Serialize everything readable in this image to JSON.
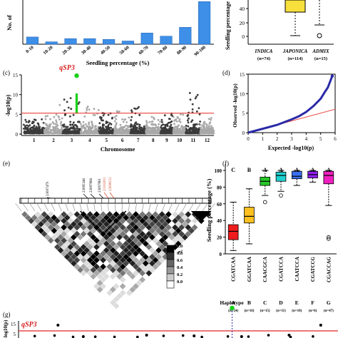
{
  "panels": {
    "a": {
      "label": "",
      "ylabel": "No. of",
      "xlabel": "Seedling percentage (%)"
    },
    "b": {
      "label": "",
      "ylabel": "Seedling percentage",
      "y_tick": "40",
      "y_tick_low": "20",
      "y_tick_zero": "0",
      "groups": [
        "INDICA",
        "JAPONICA",
        "ADMIX"
      ],
      "group_n": [
        "(n=74)",
        "(n=114)",
        "(n=15)"
      ]
    },
    "c": {
      "label": "(c)",
      "peak_label": "qSP3",
      "ylabel": "-log10(p)",
      "xlabel": "Chromosome"
    },
    "d": {
      "label": "(d)",
      "ylabel": "Observed -log10(p)",
      "xlabel": "Expected -log10(p)"
    },
    "e": {
      "label": "(e)",
      "snps": [
        "23097479",
        "23085346",
        "23087866",
        "23097861",
        "23102811",
        "23098151"
      ],
      "legend_title": "r²",
      "legend_ticks": [
        "1.0",
        "0.8",
        "0.6",
        "0.4",
        "0.2",
        "0.0"
      ]
    },
    "f": {
      "label": "(f)",
      "ylabel": "Seedling percentage (%)",
      "haplotype_title": "Haplotype"
    },
    "g": {
      "label": "(g)",
      "peak_label": "qSP3",
      "ylabel": "-log10(p)",
      "y_ticks": [
        "15",
        "5"
      ]
    }
  },
  "chart_data": [
    {
      "panel": "a",
      "type": "bar",
      "categories": [
        "0-10",
        "10-20",
        "20-30",
        "30-40",
        "40-50",
        "50-60",
        "60-70",
        "70-80",
        "80-90",
        "90-100"
      ],
      "values": [
        9,
        3,
        7,
        7,
        6,
        4,
        14,
        10,
        21,
        53
      ],
      "xlabel": "Seedling percentage (%)",
      "ylim": [
        0,
        55
      ]
    },
    {
      "panel": "b",
      "type": "box",
      "categories": [
        "INDICA",
        "JAPONICA",
        "ADMIX"
      ],
      "counts": [
        "n=74",
        "n=114",
        "n=15"
      ],
      "boxes": [
        {
          "category": "JAPONICA",
          "min": 1,
          "q1": 32,
          "q3": 50,
          "max": 50
        },
        {
          "category": "ADMIX",
          "min": 8,
          "q1": 28,
          "q3": 50,
          "max": 50,
          "outliers": [
            1
          ]
        }
      ],
      "colors": {
        "JAPONICA": "#f7e03c",
        "ADMIX": "#ffffff"
      },
      "ylim": [
        0,
        50
      ]
    },
    {
      "panel": "c",
      "type": "scatter",
      "xlabel": "Chromosome",
      "categories": [
        "1",
        "2",
        "3",
        "4",
        "5",
        "6",
        "7",
        "8",
        "9",
        "10",
        "11",
        "12"
      ],
      "y_ticks": [
        0,
        5,
        10,
        15
      ],
      "threshold": 5.3,
      "ylim": [
        0,
        15
      ],
      "peaks": [
        5,
        7.5,
        10.5,
        8,
        7,
        6.5,
        7.5,
        6,
        6.5,
        6,
        11,
        5
      ],
      "highlight": {
        "chromosome": 3,
        "label": "qSP3",
        "y": 14.8
      },
      "colors": {
        "odd": "#3a3a3a",
        "even": "#a8a8a8",
        "threshold": "#e8403a",
        "highlight": "#18d018"
      }
    },
    {
      "panel": "d",
      "type": "scatter",
      "x_ticks": [
        0,
        1,
        2,
        3,
        4,
        5,
        6
      ],
      "y_ticks": [
        0,
        5,
        10,
        15
      ],
      "xlim": [
        0,
        6
      ],
      "ylim": [
        0,
        15
      ],
      "points": [
        [
          0,
          0
        ],
        [
          2,
          2
        ],
        [
          3,
          3.4
        ],
        [
          3.5,
          4.2
        ],
        [
          4,
          5.3
        ],
        [
          4.5,
          6.8
        ],
        [
          5,
          8.7
        ],
        [
          5.3,
          10.5
        ],
        [
          5.5,
          11.6
        ],
        [
          5.8,
          14.5
        ]
      ],
      "colors": {
        "points": "#2a2aa8",
        "diagonal": "#e8403a"
      }
    },
    {
      "panel": "f",
      "type": "box",
      "categories": [
        "A",
        "B",
        "C",
        "D",
        "E",
        "F",
        "G"
      ],
      "sequences": [
        "CGATCAA",
        "GGATCAA",
        "CAACGCA",
        "CGATCCA",
        "CAATCCA",
        "CGATCCG",
        "CGACCAG"
      ],
      "counts": [
        "n=24",
        "n=16",
        "n=15",
        "n=11",
        "n=10",
        "n=6",
        "n=47"
      ],
      "letters": [
        "C",
        "B",
        "A",
        "A",
        "A",
        "A",
        "A"
      ],
      "y_ticks": [
        0,
        20,
        40,
        60,
        80,
        100
      ],
      "ylim": [
        0,
        106
      ],
      "boxes": [
        {
          "category": "A",
          "min": 4,
          "q1": 17,
          "median": 27,
          "q3": 35,
          "max": 62,
          "color": "#ee1c1c"
        },
        {
          "category": "B",
          "min": 12,
          "q1": 37,
          "median": 45,
          "q3": 56,
          "max": 78,
          "color": "#ffc020"
        },
        {
          "category": "C",
          "min": 70,
          "q1": 82,
          "median": 87,
          "q3": 92,
          "max": 100,
          "color": "#28c828",
          "outliers": [
            62
          ]
        },
        {
          "category": "D",
          "min": 75,
          "q1": 87,
          "median": 94,
          "q3": 98,
          "max": 100,
          "color": "#20d0d0",
          "outliers": [
            70
          ]
        },
        {
          "category": "E",
          "min": 82,
          "q1": 90,
          "median": 93,
          "q3": 99,
          "max": 100,
          "color": "#3a70f0"
        },
        {
          "category": "F",
          "min": 86,
          "q1": 91,
          "median": 95,
          "q3": 99,
          "max": 100,
          "color": "#9020f0"
        },
        {
          "category": "G",
          "min": 58,
          "q1": 84,
          "median": 94,
          "q3": 99,
          "max": 100,
          "color": "#f020c0",
          "outliers": [
            20,
            18
          ]
        }
      ]
    },
    {
      "panel": "g",
      "type": "scatter",
      "y_ticks": [
        5,
        15
      ],
      "threshold": 5,
      "points": [
        [
          0.12,
          6.5
        ],
        [
          0.95,
          6
        ],
        [
          0.2,
          0.5
        ],
        [
          0.4,
          1
        ],
        [
          0.55,
          2
        ],
        [
          0.7,
          1.2
        ],
        [
          0.85,
          0.8
        ]
      ],
      "highlight": {
        "label": "qSP3",
        "x": 0.67,
        "y": 12
      },
      "colors": {
        "threshold": "#e02828",
        "highlight": "#18d018",
        "points": "#000000"
      }
    }
  ]
}
